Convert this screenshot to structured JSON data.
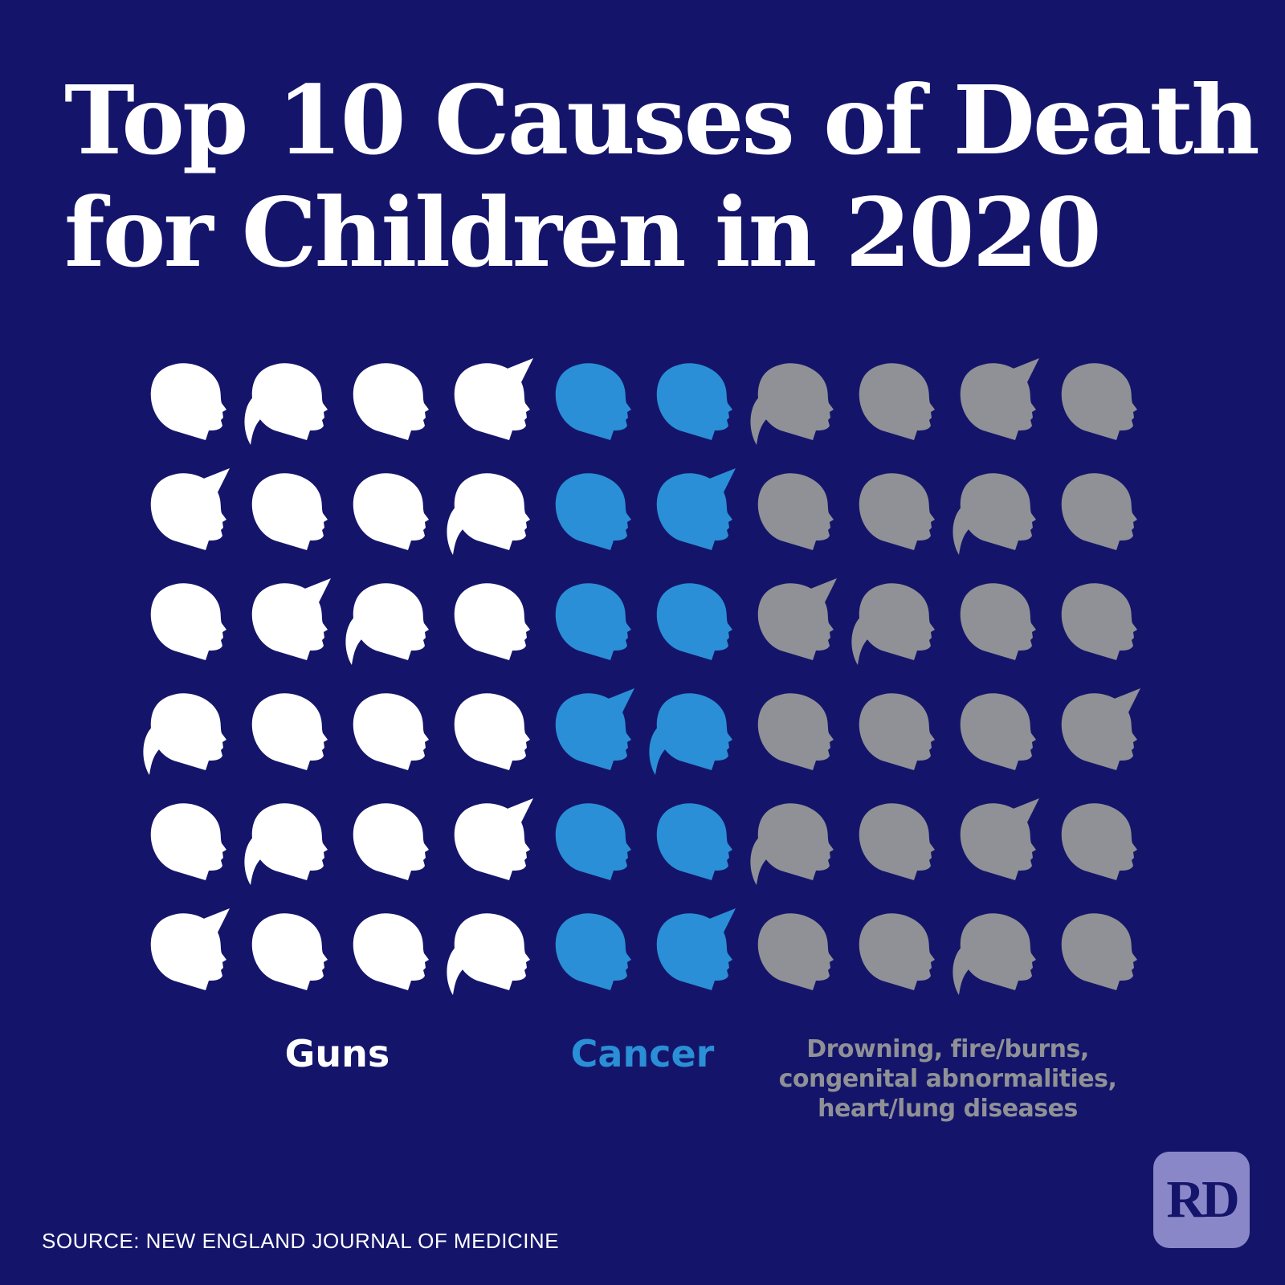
{
  "title": {
    "line1": "Top 10 Causes of Death",
    "line2": "for Children in 2020"
  },
  "grid": {
    "rows": 6,
    "columns": 10,
    "groups": [
      {
        "label": "Guns",
        "columns": 4,
        "color": "#ffffff"
      },
      {
        "label": "Cancer",
        "columns": 2,
        "color": "#2a8fd6"
      },
      {
        "label_lines": [
          "Drowning, fire/burns,",
          "congenital abnormalities,",
          "heart/lung diseases"
        ],
        "columns": 4,
        "color": "#8f9196"
      }
    ],
    "head_styles": [
      [
        "short",
        "ponytail",
        "short",
        "cap",
        "short",
        "short",
        "ponytail",
        "short",
        "cap",
        "short"
      ],
      [
        "cap",
        "short",
        "short",
        "ponytail",
        "short",
        "cap",
        "short",
        "short",
        "ponytail",
        "short"
      ],
      [
        "short",
        "cap",
        "ponytail",
        "short",
        "short",
        "short",
        "cap",
        "ponytail",
        "short",
        "short"
      ],
      [
        "ponytail",
        "short",
        "short",
        "short",
        "cap",
        "ponytail",
        "short",
        "short",
        "short",
        "cap"
      ],
      [
        "short",
        "ponytail",
        "short",
        "cap",
        "short",
        "short",
        "ponytail",
        "short",
        "cap",
        "short"
      ],
      [
        "cap",
        "short",
        "short",
        "ponytail",
        "short",
        "cap",
        "short",
        "short",
        "ponytail",
        "short"
      ]
    ]
  },
  "labels": {
    "guns": "Guns",
    "cancer": "Cancer",
    "other_line1": "Drowning, fire/burns,",
    "other_line2": "congenital abnormalities,",
    "other_line3": "heart/lung diseases"
  },
  "source": "SOURCE: NEW ENGLAND JOURNAL OF MEDICINE",
  "logo": "RD",
  "colors": {
    "background": "#14156a",
    "guns": "#ffffff",
    "cancer": "#2a8fd6",
    "other": "#8f9196",
    "logo_bg": "#8a87c9"
  }
}
